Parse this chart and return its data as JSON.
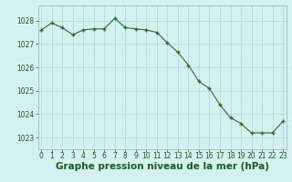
{
  "hours": [
    0,
    1,
    2,
    3,
    4,
    5,
    6,
    7,
    8,
    9,
    10,
    11,
    12,
    13,
    14,
    15,
    16,
    17,
    18,
    19,
    20,
    21,
    22,
    23
  ],
  "values": [
    1027.6,
    1027.9,
    1027.7,
    1027.4,
    1027.6,
    1027.65,
    1027.65,
    1028.1,
    1027.7,
    1027.65,
    1027.6,
    1027.5,
    1027.05,
    1026.65,
    1026.1,
    1025.4,
    1025.1,
    1024.4,
    1023.85,
    1023.6,
    1023.2,
    1023.2,
    1023.2,
    1023.7
  ],
  "line_color": "#2d6a2d",
  "marker_color": "#2d6a2d",
  "background_color": "#d4f0f0",
  "grid_color": "#aad8d0",
  "xlabel": "Graphe pression niveau de la mer (hPa)",
  "xlabel_color": "#1a5c1a",
  "ylim": [
    1022.5,
    1028.65
  ],
  "yticks": [
    1023,
    1024,
    1025,
    1026,
    1027,
    1028
  ],
  "xticks": [
    0,
    1,
    2,
    3,
    4,
    5,
    6,
    7,
    8,
    9,
    10,
    11,
    12,
    13,
    14,
    15,
    16,
    17,
    18,
    19,
    20,
    21,
    22,
    23
  ],
  "tick_color": "#1a5c1a",
  "tick_fontsize": 5.5,
  "xlabel_fontsize": 7.5,
  "spine_color": "#aaaaaa"
}
